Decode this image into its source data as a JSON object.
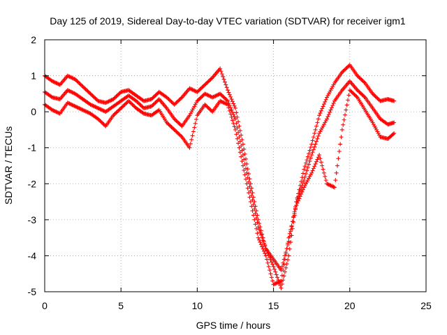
{
  "chart_data": {
    "type": "scatter",
    "title": "Day 125 of 2019, Sidereal Day-to-day VTEC variation (SDTVAR) for receiver igm1",
    "xlabel": "GPS time / hours",
    "ylabel": "SDTVAR / TECUs",
    "xlim": [
      0,
      25
    ],
    "ylim": [
      -5,
      2
    ],
    "xticks": [
      "0",
      "5",
      "10",
      "15",
      "20",
      "25"
    ],
    "yticks": [
      "-5",
      "-4",
      "-3",
      "-2",
      "-1",
      "0",
      "1",
      "2"
    ],
    "grid": true,
    "marker": "plus",
    "color": "#ff0000",
    "series": [
      {
        "x": [
          0.0,
          0.5,
          1.0,
          1.5,
          2.0,
          2.5,
          3.0,
          3.5,
          4.0,
          4.5,
          5.0,
          5.5,
          6.0,
          6.5,
          7.0,
          7.5,
          8.0,
          8.5,
          9.0,
          9.5,
          10.0,
          10.5,
          11.0,
          11.5,
          12.0,
          12.5,
          13.0,
          13.5,
          14.0,
          14.5,
          15.0,
          15.5,
          16.0,
          16.5,
          17.0,
          17.5,
          18.0,
          18.5,
          19.0,
          19.5,
          20.0,
          20.5,
          21.0,
          21.5,
          22.0,
          22.5,
          22.9
        ],
        "y": [
          1.0,
          0.85,
          0.75,
          1.0,
          0.9,
          0.7,
          0.5,
          0.3,
          0.25,
          0.35,
          0.55,
          0.6,
          0.45,
          0.3,
          0.35,
          0.55,
          0.4,
          0.2,
          0.4,
          0.65,
          0.55,
          0.75,
          0.95,
          1.2,
          0.6,
          0.1,
          -0.9,
          -2.0,
          -3.0,
          -3.8,
          -4.3,
          -4.9,
          -4.0,
          -2.5,
          -1.6,
          -0.9,
          -0.1,
          0.4,
          0.8,
          1.1,
          1.3,
          1.0,
          0.8,
          0.5,
          0.3,
          0.35,
          0.3
        ]
      },
      {
        "x": [
          0.0,
          0.5,
          1.0,
          1.5,
          2.0,
          2.5,
          3.0,
          3.5,
          4.0,
          4.5,
          5.0,
          5.5,
          6.0,
          6.5,
          7.0,
          7.5,
          8.0,
          8.5,
          9.0,
          9.5,
          10.0,
          10.5,
          11.0,
          11.5,
          12.0,
          12.5,
          13.0,
          13.5,
          14.0,
          14.5,
          15.0,
          15.5,
          16.0,
          16.5,
          17.0,
          17.5,
          18.0,
          18.5,
          19.0,
          19.5,
          20.0,
          20.5,
          21.0,
          21.5,
          22.0,
          22.5,
          22.9
        ],
        "y": [
          0.55,
          0.4,
          0.35,
          0.6,
          0.5,
          0.35,
          0.2,
          0.1,
          0.0,
          0.15,
          0.3,
          0.45,
          0.3,
          0.1,
          0.15,
          0.35,
          0.1,
          -0.2,
          -0.4,
          -0.1,
          0.3,
          0.5,
          0.4,
          0.5,
          0.3,
          -0.2,
          -1.2,
          -2.2,
          -3.2,
          -3.8,
          -4.1,
          -4.4,
          -3.6,
          -2.5,
          -1.9,
          -1.2,
          -0.6,
          -0.2,
          0.3,
          0.6,
          0.85,
          0.6,
          0.4,
          0.1,
          -0.2,
          -0.35,
          -0.3
        ]
      },
      {
        "x": [
          0.0,
          0.5,
          1.0,
          1.5,
          2.0,
          2.5,
          3.0,
          3.5,
          4.0,
          4.5,
          5.0,
          5.5,
          6.0,
          6.5,
          7.0,
          7.5,
          8.0,
          8.5,
          9.0,
          9.5,
          10.0,
          10.5,
          11.0,
          11.5,
          12.0,
          12.5,
          13.0,
          13.5,
          14.0,
          14.5,
          15.0,
          15.5,
          16.0,
          16.5,
          17.0,
          17.5,
          18.0,
          18.5,
          19.0,
          19.5,
          20.0,
          20.5,
          21.0,
          21.5,
          22.0,
          22.5,
          22.9
        ],
        "y": [
          0.2,
          0.05,
          -0.05,
          0.25,
          0.15,
          0.05,
          -0.05,
          -0.2,
          -0.4,
          -0.1,
          0.1,
          0.3,
          0.1,
          -0.05,
          -0.1,
          0.05,
          -0.3,
          -0.5,
          -0.7,
          -1.0,
          -0.1,
          0.2,
          0.0,
          0.3,
          0.2,
          -0.5,
          -1.5,
          -2.5,
          -3.5,
          -4.0,
          -4.8,
          -4.7,
          -3.5,
          -2.6,
          -2.1,
          -1.7,
          -1.2,
          -2.0,
          -2.1,
          -0.5,
          0.6,
          0.4,
          0.05,
          -0.3,
          -0.7,
          -0.75,
          -0.6
        ]
      }
    ]
  }
}
